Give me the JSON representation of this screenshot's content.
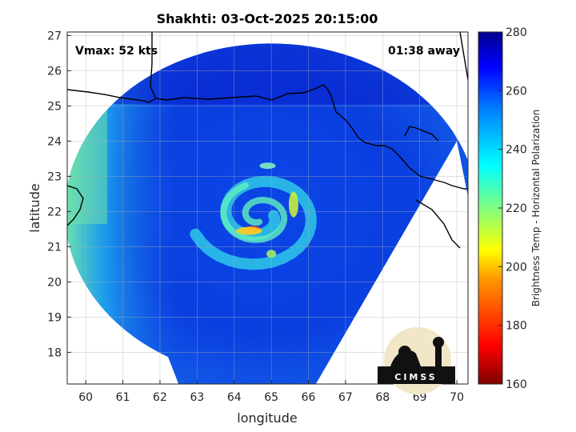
{
  "chart_data": {
    "type": "heatmap",
    "title": "Shakhti: 03-Oct-2025 20:15:00",
    "xlabel": "longitude",
    "ylabel": "latitude",
    "xlim": [
      59.5,
      70.3
    ],
    "ylim": [
      17.1,
      27.1
    ],
    "xticks": [
      60,
      61,
      62,
      63,
      64,
      65,
      66,
      67,
      68,
      69,
      70
    ],
    "yticks": [
      18,
      19,
      20,
      21,
      22,
      23,
      24,
      25,
      26,
      27
    ],
    "grid": true,
    "annotations": {
      "vmax": "Vmax: 52 kts",
      "away": "01:38 away"
    },
    "colorbar": {
      "label": "Brightness Temp - Horizontal Polarization",
      "range": [
        160,
        280
      ],
      "ticks": [
        160,
        180,
        200,
        220,
        240,
        260,
        280
      ],
      "colormap": [
        "#7f0000",
        "#ff0000",
        "#ff8000",
        "#ffff00",
        "#80ff80",
        "#00ffff",
        "#0080ff",
        "#0000ff",
        "#00008f"
      ]
    },
    "storm_center": {
      "lon": 65.0,
      "lat": 22.0
    }
  },
  "logo": {
    "text": "CIMSS"
  }
}
